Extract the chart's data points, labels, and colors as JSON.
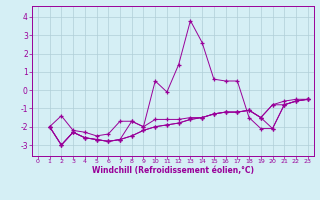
{
  "background_color": "#d5eff5",
  "grid_color": "#b0cfd8",
  "line_color": "#990099",
  "xlabel": "Windchill (Refroidissement éolien,°C)",
  "xlim": [
    -0.5,
    23.5
  ],
  "ylim": [
    -3.6,
    4.6
  ],
  "yticks": [
    -3,
    -2,
    -1,
    0,
    1,
    2,
    3,
    4
  ],
  "xticks": [
    0,
    1,
    2,
    3,
    4,
    5,
    6,
    7,
    8,
    9,
    10,
    11,
    12,
    13,
    14,
    15,
    16,
    17,
    18,
    19,
    20,
    21,
    22,
    23
  ],
  "line1_x": [
    1,
    2,
    3,
    4,
    5,
    6,
    7,
    8,
    9,
    10,
    11,
    12,
    13,
    14,
    15,
    16,
    17,
    18,
    19,
    20,
    21,
    22,
    23
  ],
  "line1_y": [
    -2.0,
    -1.4,
    -2.2,
    -2.3,
    -2.5,
    -2.4,
    -1.7,
    -1.7,
    -2.0,
    -1.6,
    -1.6,
    -1.6,
    -1.5,
    -1.5,
    -1.3,
    -1.2,
    -1.2,
    -1.1,
    -1.5,
    -0.8,
    -0.6,
    -0.5,
    -0.5
  ],
  "line2_x": [
    1,
    2,
    3,
    4,
    5,
    6,
    7,
    8,
    9,
    10,
    11,
    12,
    13,
    14,
    15,
    16,
    17,
    18,
    19,
    20,
    21,
    22,
    23
  ],
  "line2_y": [
    -2.0,
    -3.0,
    -2.3,
    -2.6,
    -2.7,
    -2.8,
    -2.7,
    -2.5,
    -2.2,
    -2.0,
    -1.9,
    -1.8,
    -1.6,
    -1.5,
    -1.3,
    -1.2,
    -1.2,
    -1.1,
    -1.5,
    -2.1,
    -0.8,
    -0.6,
    -0.5
  ],
  "line3_x": [
    1,
    2,
    3,
    4,
    5,
    6,
    7,
    8,
    9,
    10,
    11,
    12,
    13,
    14,
    15,
    16,
    17,
    18,
    19,
    20,
    21,
    22,
    23
  ],
  "line3_y": [
    -2.0,
    -3.0,
    -2.3,
    -2.6,
    -2.7,
    -2.8,
    -2.7,
    -1.7,
    -2.0,
    0.5,
    -0.1,
    1.4,
    3.8,
    2.6,
    0.6,
    0.5,
    0.5,
    -1.5,
    -2.1,
    -2.1,
    -0.8,
    -0.6,
    -0.5
  ],
  "line4_x": [
    1,
    2,
    3,
    4,
    5,
    6,
    7,
    8,
    9,
    10,
    11,
    12,
    13,
    14,
    15,
    16,
    17,
    18,
    19,
    20,
    21,
    22,
    23
  ],
  "line4_y": [
    -2.0,
    -3.0,
    -2.3,
    -2.6,
    -2.7,
    -2.8,
    -2.7,
    -2.5,
    -2.2,
    -2.0,
    -1.9,
    -1.8,
    -1.6,
    -1.5,
    -1.3,
    -1.2,
    -1.2,
    -1.1,
    -1.5,
    -0.8,
    -0.8,
    -0.6,
    -0.5
  ]
}
